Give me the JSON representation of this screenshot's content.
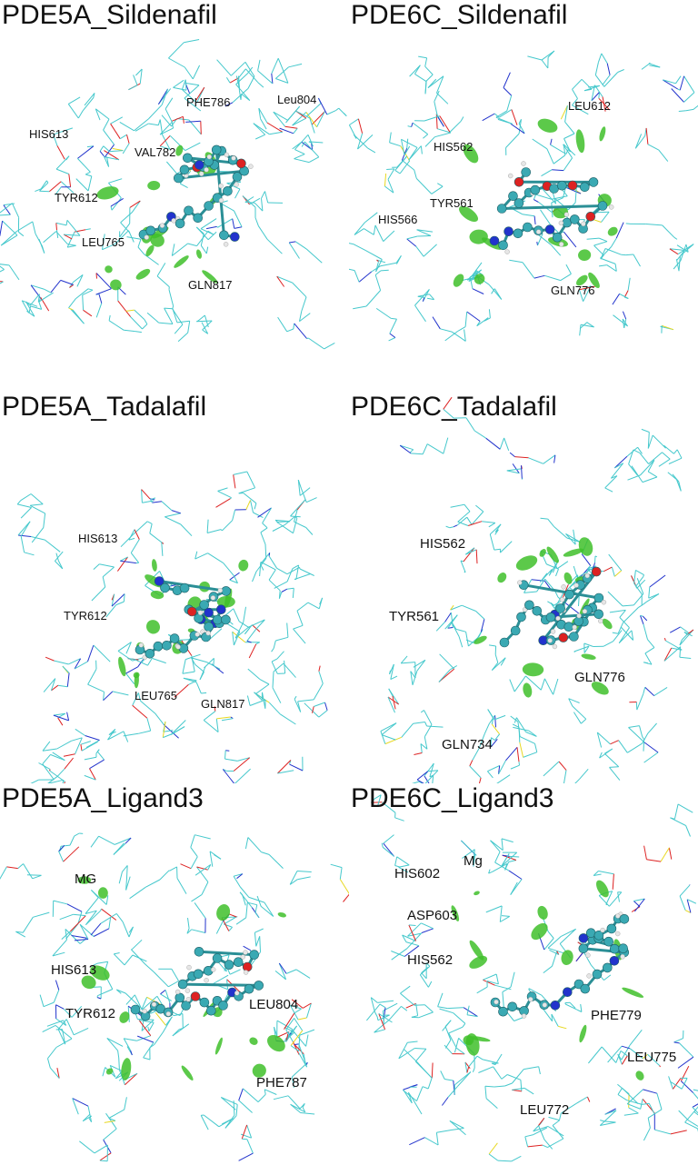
{
  "panels": [
    {
      "title": "PDE5A_Sildenafil",
      "labels": [
        "HIS613",
        "PHE786",
        "Leu804",
        "VAL782",
        "TYR612",
        "LEU765",
        "GLN817"
      ]
    },
    {
      "title": "PDE6C_Sildenafil",
      "labels": [
        "LEU612",
        "HIS562",
        "TYR561",
        "HIS566",
        "GLN776"
      ]
    },
    {
      "title": "PDE5A_Tadalafil",
      "labels": [
        "HIS613",
        "TYR612",
        "LEU765",
        "GLN817"
      ]
    },
    {
      "title": "PDE6C_Tadalafil",
      "labels": [
        "HIS562",
        "TYR561",
        "GLN776",
        "GLN734"
      ]
    },
    {
      "title": "PDE5A_Ligand3",
      "labels": [
        "MG",
        "HIS613",
        "TYR612",
        "LEU804",
        "PHE787"
      ]
    },
    {
      "title": "PDE6C_Ligand3",
      "labels": [
        "Mg",
        "HIS602",
        "ASP603",
        "HIS562",
        "PHE779",
        "LEU775",
        "LEU772"
      ]
    }
  ],
  "colors": {
    "protein_wire": "#45c8cc",
    "nitrogen": "#2233cc",
    "oxygen": "#dd2222",
    "sulfur": "#e8d820",
    "carbon_ball": "#3aa9b3",
    "hydrogen_ball": "#e6e6e6",
    "nci_surface": "#3fbf2a"
  }
}
